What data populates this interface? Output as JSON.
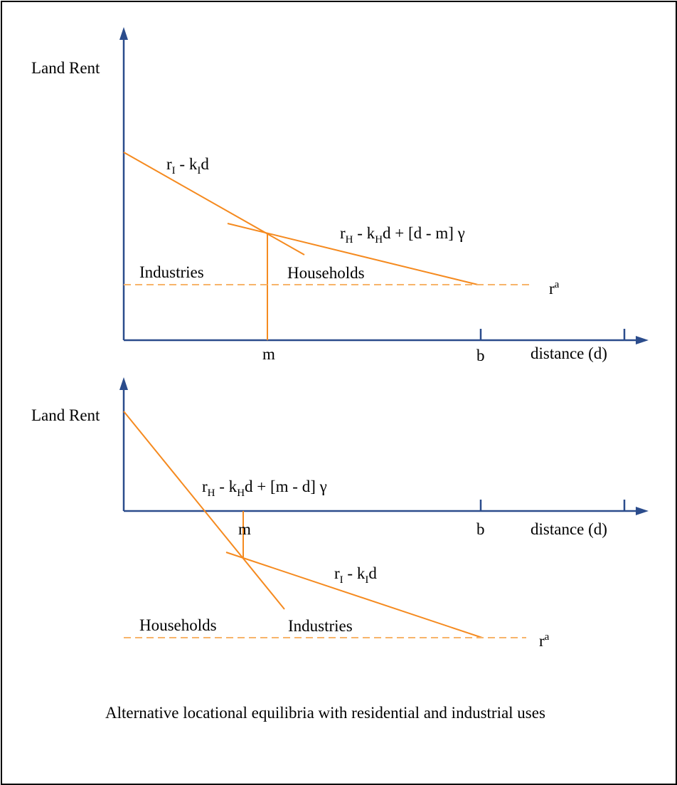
{
  "colors": {
    "axis": "#2b4c8c",
    "curve": "#f58a1f",
    "dashed": "#f7b46a"
  },
  "top_panel": {
    "y_axis_label": "Land Rent",
    "x_axis_label": "distance (d)",
    "tick_m": "m",
    "tick_b": "b",
    "curve_steep": {
      "r": "r",
      "r_sub": "I",
      "mid": " - k",
      "k_sub": "I",
      "tail": "d"
    },
    "curve_flat": {
      "r": "r",
      "r_sub": "H",
      "mid": " - k",
      "k_sub": "H",
      "tail": "d + [d - m] γ"
    },
    "zone_left": "Industries",
    "zone_right": "Households",
    "ra": {
      "base": "r",
      "sup": "a"
    }
  },
  "bottom_panel": {
    "y_axis_label": "Land Rent",
    "x_axis_label": "distance (d)",
    "tick_m": "m",
    "tick_b": "b",
    "curve_steep": {
      "r": "r",
      "r_sub": "H",
      "mid": " - k",
      "k_sub": "H",
      "tail": "d + [m - d] γ"
    },
    "curve_flat": {
      "r": "r",
      "r_sub": "I",
      "mid": " - k",
      "k_sub": "I",
      "tail": "d"
    },
    "zone_left": "Households",
    "zone_right": "Industries",
    "ra": {
      "base": "r",
      "sup": "a"
    }
  },
  "caption": "Alternative locational equilibria with residential and industrial uses"
}
